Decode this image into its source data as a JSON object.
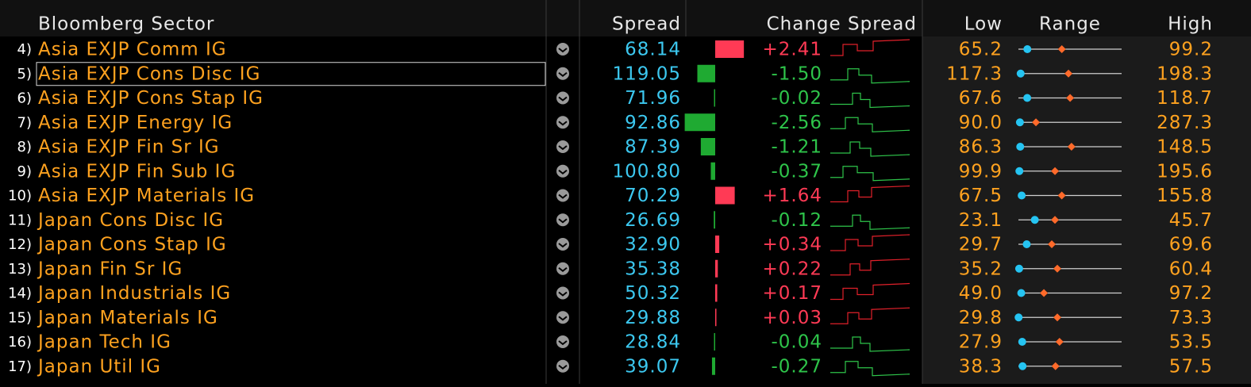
{
  "header": {
    "sector": "Bloomberg Sector",
    "spread": "Spread",
    "change": "Change Spread",
    "low": "Low",
    "range": "Range",
    "high": "High"
  },
  "rows": [
    {
      "index": "4)",
      "name": "Asia EXJP Comm IG",
      "spread": "68.14",
      "change": "+2.41",
      "low": "65.2",
      "avg": 79.5,
      "high": "99.2"
    },
    {
      "index": "5)",
      "name": "Asia EXJP Cons Disc IG",
      "spread": "119.05",
      "change": "-1.50",
      "low": "117.3",
      "avg": 156.6,
      "high": "198.3"
    },
    {
      "index": "6)",
      "name": "Asia EXJP Cons Stap IG",
      "spread": "71.96",
      "change": "-0.02",
      "low": "67.6",
      "avg": 93.2,
      "high": "118.7"
    },
    {
      "index": "7)",
      "name": "Asia EXJP Energy IG",
      "spread": "92.86",
      "change": "-2.56",
      "low": "90.0",
      "avg": 123.5,
      "high": "287.3"
    },
    {
      "index": "8)",
      "name": "Asia EXJP Fin Sr IG",
      "spread": "87.39",
      "change": "-1.21",
      "low": "86.3",
      "avg": 118.3,
      "high": "148.5"
    },
    {
      "index": "9)",
      "name": "Asia EXJP Fin Sub IG",
      "spread": "100.80",
      "change": "-0.37",
      "low": "99.9",
      "avg": 133.8,
      "high": "195.6"
    },
    {
      "index": "10)",
      "name": "Asia EXJP Materials IG",
      "spread": "70.29",
      "change": "+1.64",
      "low": "67.5",
      "avg": 104.6,
      "high": "155.8"
    },
    {
      "index": "11)",
      "name": "Japan Cons Disc IG",
      "spread": "26.69",
      "change": "-0.12",
      "low": "23.1",
      "avg": 31.1,
      "high": "45.7"
    },
    {
      "index": "12)",
      "name": "Japan Cons Stap IG",
      "spread": "32.90",
      "change": "+0.34",
      "low": "29.7",
      "avg": 42.6,
      "high": "69.6"
    },
    {
      "index": "13)",
      "name": "Japan Fin Sr IG",
      "spread": "35.38",
      "change": "+0.22",
      "low": "35.2",
      "avg": 44.7,
      "high": "60.4"
    },
    {
      "index": "14)",
      "name": "Japan Industrials IG",
      "spread": "50.32",
      "change": "+0.17",
      "low": "49.0",
      "avg": 60.9,
      "high": "97.2"
    },
    {
      "index": "15)",
      "name": "Japan Materials IG",
      "spread": "29.88",
      "change": "+0.03",
      "low": "29.8",
      "avg": 46.2,
      "high": "73.3"
    },
    {
      "index": "16)",
      "name": "Japan Tech IG",
      "spread": "28.84",
      "change": "-0.04",
      "low": "27.9",
      "avg": 38.1,
      "high": "53.5"
    },
    {
      "index": "17)",
      "name": "Japan Util IG",
      "spread": "39.07",
      "change": "-0.27",
      "low": "38.3",
      "avg": 45.2,
      "high": "57.5"
    }
  ]
}
